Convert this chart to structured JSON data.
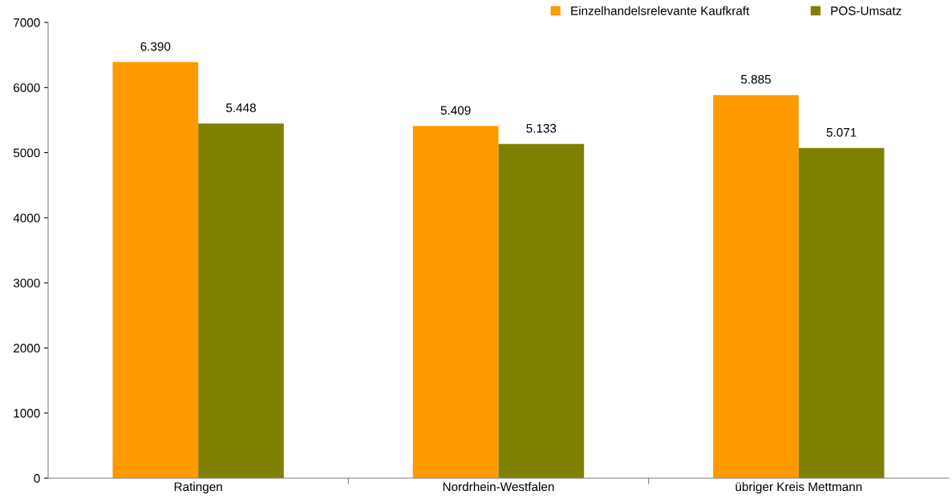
{
  "chart_data": {
    "type": "bar",
    "categories": [
      "Ratingen",
      "Nordrhein-Westfalen",
      "übriger Kreis Mettmann"
    ],
    "series": [
      {
        "name": "Einzelhandelsrelevante Kaufkraft",
        "color": "#ff9900",
        "values": [
          6390,
          5409,
          5885
        ],
        "value_labels": [
          "6.390",
          "5.409",
          "5.885"
        ]
      },
      {
        "name": "POS-Umsatz",
        "color": "#808000",
        "values": [
          5448,
          5133,
          5071
        ],
        "value_labels": [
          "5.448",
          "5.133",
          "5.071"
        ]
      }
    ],
    "ylim": [
      0,
      7000
    ],
    "yticks": [
      0,
      1000,
      2000,
      3000,
      4000,
      5000,
      6000,
      7000
    ],
    "grid": false,
    "legend": "top right"
  }
}
